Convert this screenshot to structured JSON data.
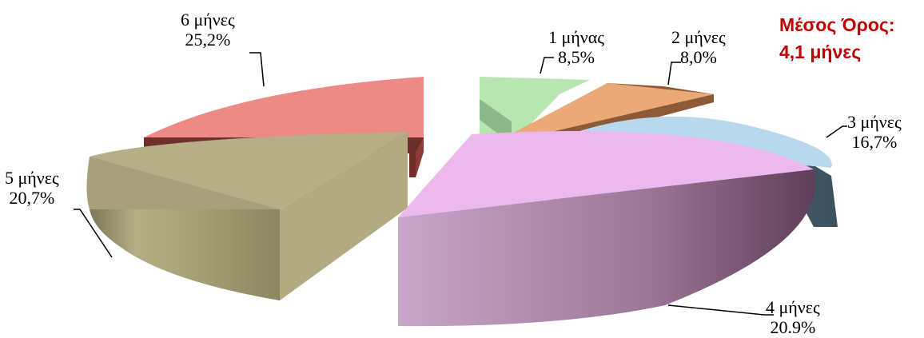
{
  "chart_data": {
    "type": "pie",
    "title": "",
    "categories": [
      "1 μήνας",
      "2 μήνες",
      "3 μήνες",
      "4 μήνες",
      "5 μήνες",
      "6 μήνες"
    ],
    "values": [
      8.5,
      8.0,
      16.7,
      20.9,
      20.7,
      25.2
    ],
    "value_labels": [
      "8,5%",
      "8,0%",
      "16,7%",
      "20.9%",
      "20,7%",
      "25,2%"
    ],
    "colors": [
      "#b8e6b0",
      "#eba978",
      "#b8d8ee",
      "#ecb8ee",
      "#b6ae86",
      "#ee8a86"
    ],
    "style": "3d-exploded",
    "annotation": [
      "Μέσος Όρος:",
      "4,1 μήνες"
    ]
  }
}
